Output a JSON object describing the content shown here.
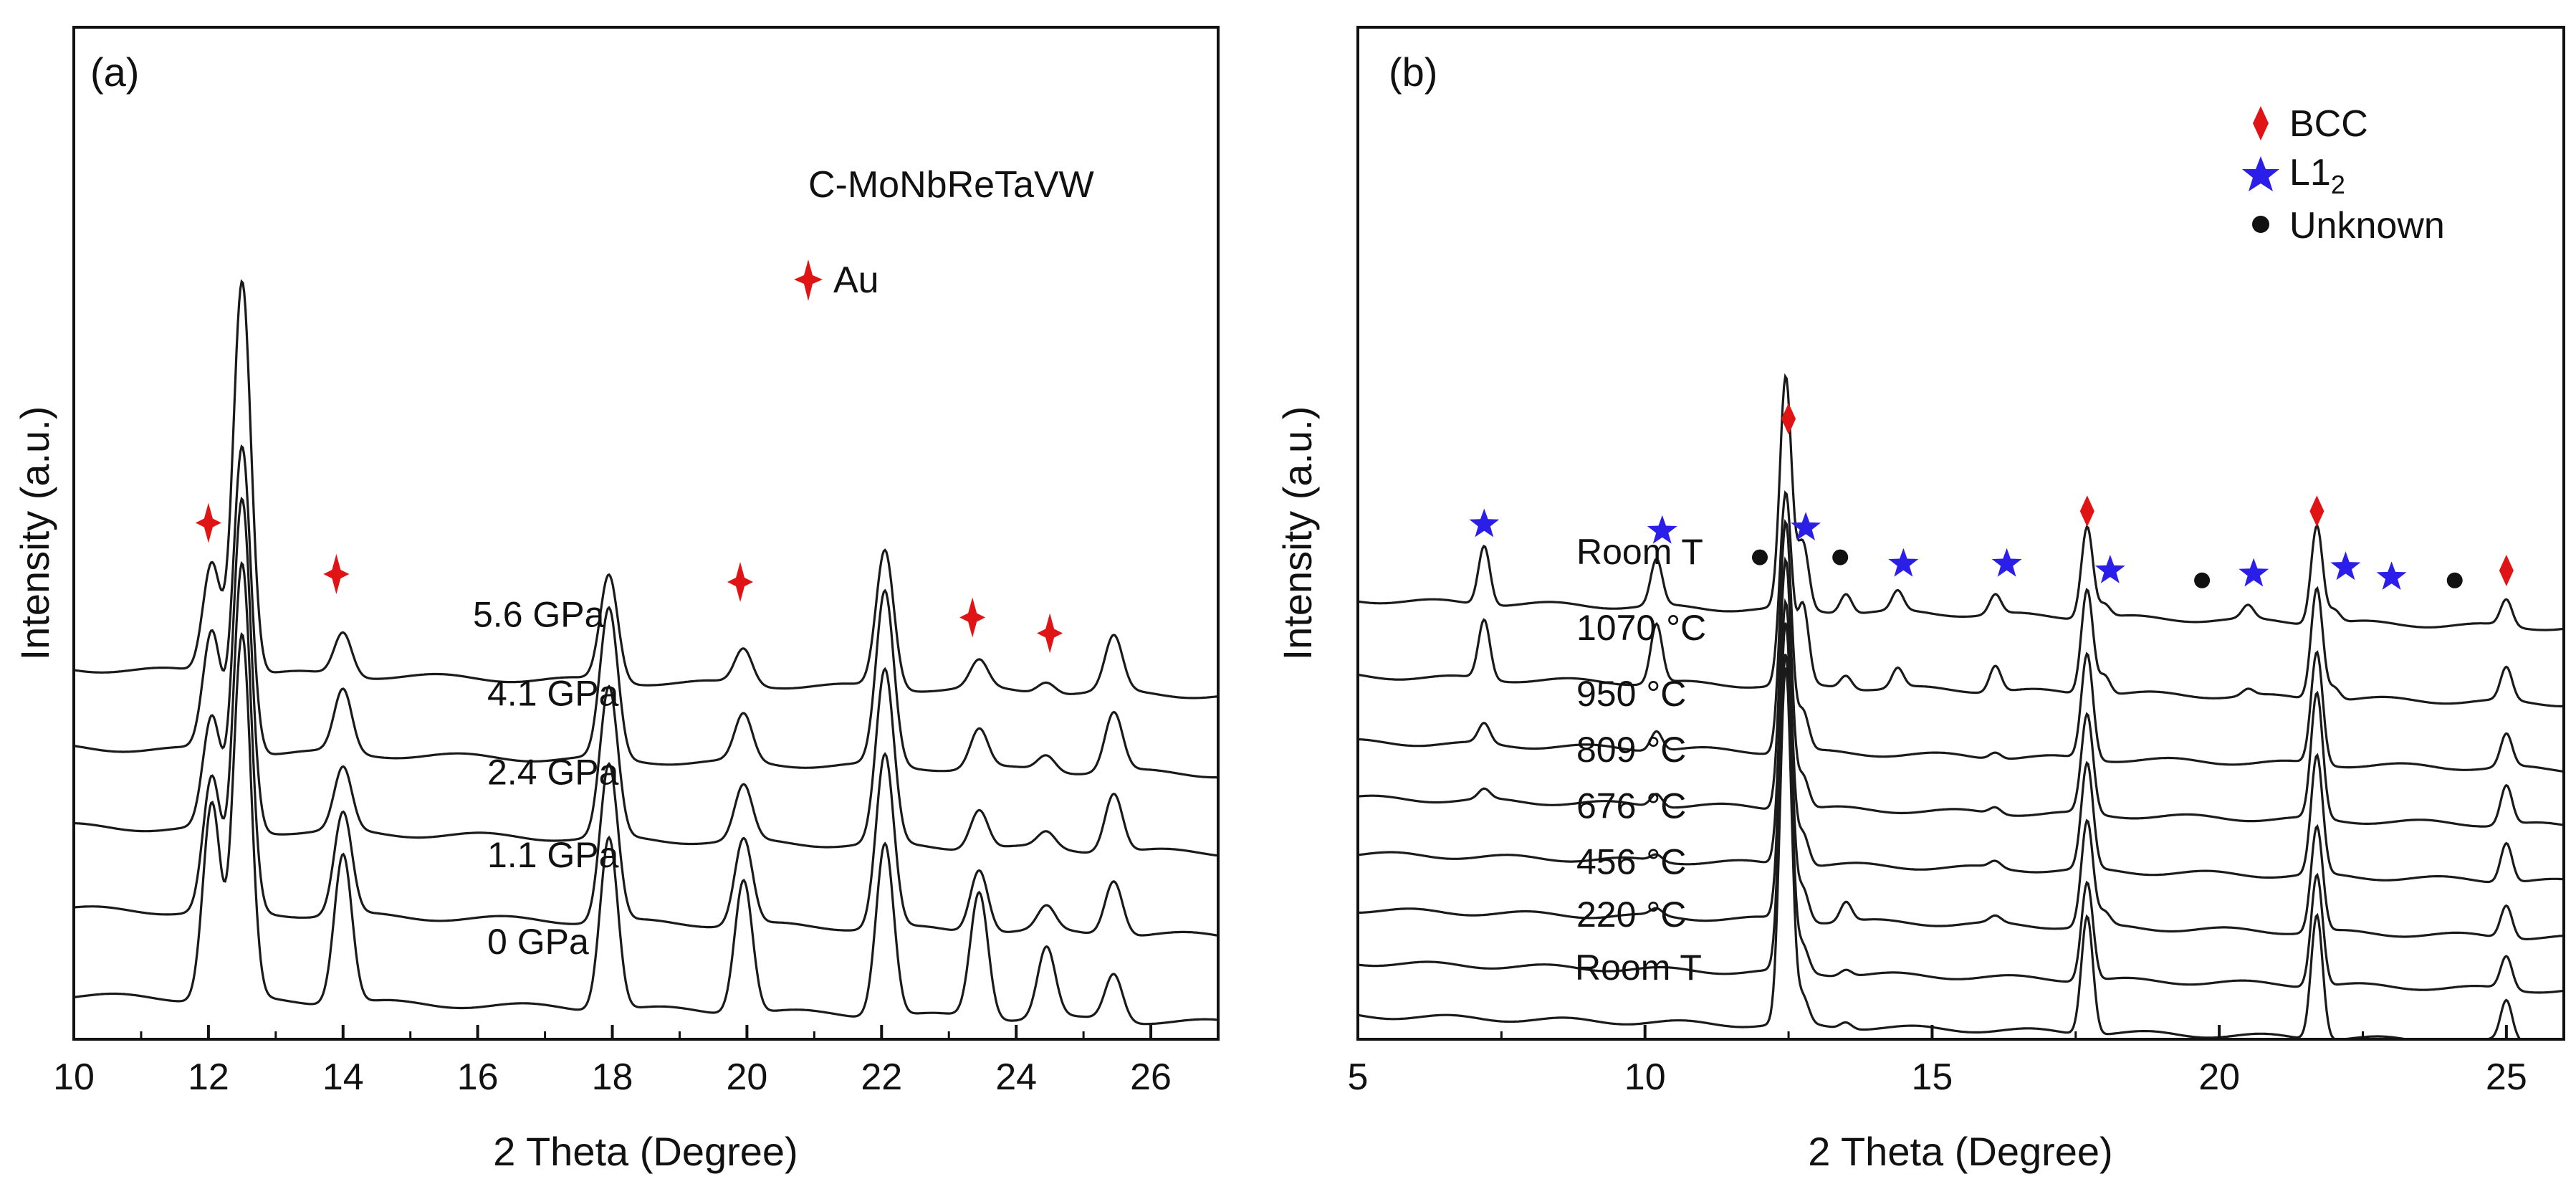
{
  "chart_data": [
    {
      "type": "line",
      "panel_label": "(a)",
      "title": "C-MoNbReTaVW",
      "xlabel": "2 Theta (Degree)",
      "ylabel": "Intensity (a.u.)",
      "xlim": [
        10,
        27
      ],
      "ylim": [
        0,
        6
      ],
      "x_ticks": [
        10,
        12,
        14,
        16,
        18,
        20,
        22,
        24,
        26
      ],
      "x_tick_labels": [
        "10",
        "12",
        "14",
        "16",
        "18",
        "20",
        "22",
        "24",
        "26"
      ],
      "peak_positions": [
        12.05,
        12.5,
        14.0,
        17.95,
        19.95,
        22.05,
        23.45,
        24.45,
        25.45
      ],
      "series": [
        {
          "name": "0 GPa",
          "offset": 0.55,
          "peak_heights": [
            2.5,
            4.6,
            1.9,
            2.2,
            1.7,
            2.2,
            1.6,
            0.9,
            0.6
          ]
        },
        {
          "name": "1.1 GPa",
          "offset": 1.65,
          "peak_heights": [
            1.7,
            4.4,
            1.3,
            2.0,
            1.1,
            2.2,
            0.8,
            0.3,
            0.7
          ]
        },
        {
          "name": "2.4 GPa",
          "offset": 2.7,
          "peak_heights": [
            1.4,
            4.2,
            0.8,
            1.9,
            0.7,
            2.2,
            0.5,
            0.2,
            0.75
          ]
        },
        {
          "name": "4.1 GPa",
          "offset": 3.7,
          "peak_heights": [
            1.5,
            3.9,
            0.8,
            1.9,
            0.6,
            2.2,
            0.5,
            0.2,
            0.75
          ]
        },
        {
          "name": "5.6 GPa",
          "offset": 4.7,
          "peak_heights": [
            1.4,
            5.0,
            0.55,
            1.35,
            0.45,
            1.75,
            0.35,
            0.15,
            0.7
          ]
        }
      ],
      "markers": [
        {
          "legend": "Au",
          "symbol": "red-sparkle",
          "x": [
            12.0,
            13.9,
            19.9,
            23.35,
            24.5
          ],
          "y": [
            6.55,
            5.9,
            5.8,
            5.35,
            5.15
          ]
        }
      ]
    },
    {
      "type": "line",
      "panel_label": "(b)",
      "xlabel": "2 Theta (Degree)",
      "ylabel": "Intensity (a.u.)",
      "xlim": [
        5,
        26
      ],
      "ylim": [
        0,
        9
      ],
      "x_ticks": [
        5,
        10,
        15,
        20,
        25
      ],
      "x_tick_labels": [
        "5",
        "10",
        "15",
        "20",
        "25"
      ],
      "peak_positions": [
        7.2,
        10.2,
        12.45,
        12.75,
        13.5,
        14.4,
        16.1,
        17.7,
        18.0,
        20.5,
        21.7,
        22.0,
        25.0
      ],
      "series": [
        {
          "name": "Room T",
          "offset": 0.25,
          "peak_heights": [
            0,
            0,
            5.4,
            0.4,
            0.1,
            0,
            0,
            1.8,
            0,
            0,
            1.9,
            0,
            0.6
          ]
        },
        {
          "name": "220 °C",
          "offset": 1.05,
          "peak_heights": [
            0,
            0,
            4.8,
            0.4,
            0.1,
            0,
            0,
            1.5,
            0,
            0,
            1.7,
            0,
            0.5
          ]
        },
        {
          "name": "456 °C",
          "offset": 1.85,
          "peak_heights": [
            0,
            0.1,
            4.5,
            0.5,
            0.3,
            0,
            0.1,
            1.6,
            0.2,
            0,
            1.6,
            0,
            0.5
          ]
        },
        {
          "name": "676 °C",
          "offset": 2.7,
          "peak_heights": [
            0,
            0.1,
            4.0,
            0.5,
            0,
            0,
            0.1,
            1.6,
            0,
            0,
            1.8,
            0,
            0.6
          ]
        },
        {
          "name": "809 °C",
          "offset": 3.55,
          "peak_heights": [
            0.15,
            0.2,
            3.8,
            0.5,
            0,
            0,
            0.1,
            1.5,
            0,
            0,
            1.9,
            0,
            0.6
          ]
        },
        {
          "name": "950 °C",
          "offset": 4.4,
          "peak_heights": [
            0.3,
            0.3,
            3.5,
            0.6,
            0,
            0,
            0.1,
            1.6,
            0,
            0,
            1.7,
            0,
            0.5
          ]
        },
        {
          "name": "1070 °C",
          "offset": 5.4,
          "peak_heights": [
            0.9,
            0.9,
            2.9,
            1.2,
            0.2,
            0.3,
            0.4,
            1.6,
            0.3,
            0.1,
            1.7,
            0.2,
            0.5
          ]
        },
        {
          "name": "Room T",
          "offset": 6.55,
          "peak_heights": [
            0.9,
            0.7,
            3.5,
            1.0,
            0.3,
            0.3,
            0.3,
            1.4,
            0.2,
            0.2,
            1.5,
            0.2,
            0.4
          ]
        }
      ],
      "markers": [
        {
          "legend": "BCC",
          "symbol": "red-diamond",
          "x": [
            12.5,
            17.7,
            21.7,
            25.0
          ],
          "y": [
            9.3,
            7.9,
            7.9,
            7.0
          ]
        },
        {
          "legend": "L1",
          "legend_subscript": "2",
          "symbol": "blue-star",
          "x": [
            7.2,
            10.3,
            12.8,
            14.5,
            16.3,
            18.1,
            20.6,
            22.2,
            23.0
          ],
          "y": [
            7.7,
            7.6,
            7.65,
            7.1,
            7.1,
            7.0,
            6.95,
            7.05,
            6.9
          ]
        },
        {
          "legend": "Unknown",
          "symbol": "black-dot",
          "x": [
            12.0,
            13.4,
            19.7,
            24.1
          ],
          "y": [
            7.2,
            7.2,
            6.85,
            6.85
          ]
        }
      ]
    }
  ]
}
